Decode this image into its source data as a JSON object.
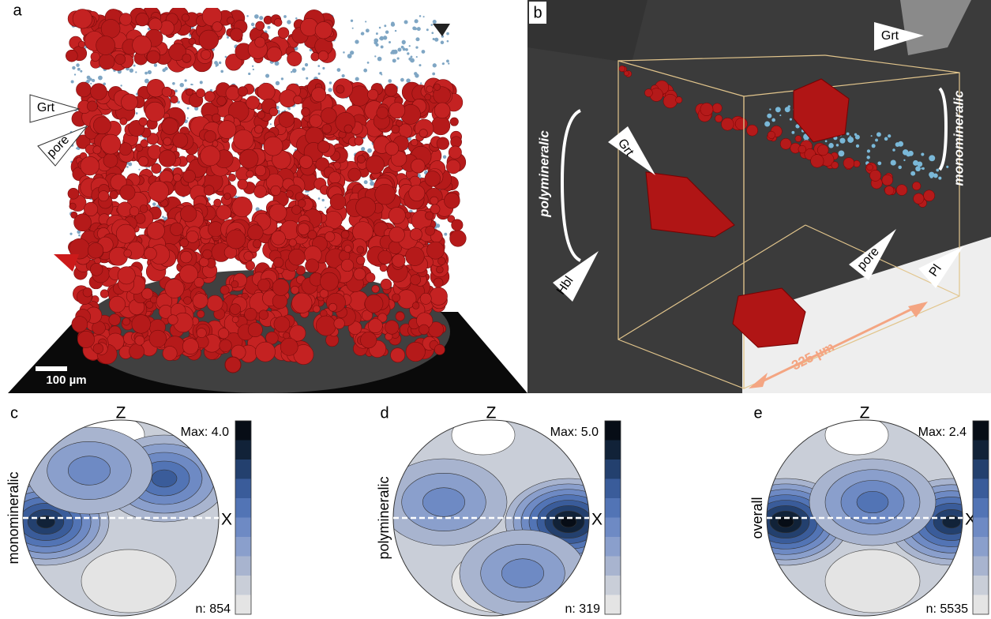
{
  "panel_a": {
    "label": "a",
    "grt": "Grt",
    "pore": "pore",
    "scale_bar": "100 µm"
  },
  "panel_b": {
    "label": "b",
    "grt_top": "Grt",
    "grt": "Grt",
    "polymineralic": "polymineralic",
    "monomineralic": "monomineralic",
    "hbl": "Hbl",
    "pore": "pore",
    "pl": "Pl",
    "scale": "325 µm"
  },
  "stereonets": [
    {
      "label": "c",
      "z": "Z",
      "x": "X",
      "max": "Max: 4.0",
      "n": "n: 854",
      "group": "monomineralic"
    },
    {
      "label": "d",
      "z": "Z",
      "x": "X",
      "max": "Max: 5.0",
      "n": "n: 319",
      "group": "polymineralic"
    },
    {
      "label": "e",
      "z": "Z",
      "x": "X",
      "max": "Max: 2.4",
      "n": "n: 5535",
      "group": "overall"
    }
  ]
}
